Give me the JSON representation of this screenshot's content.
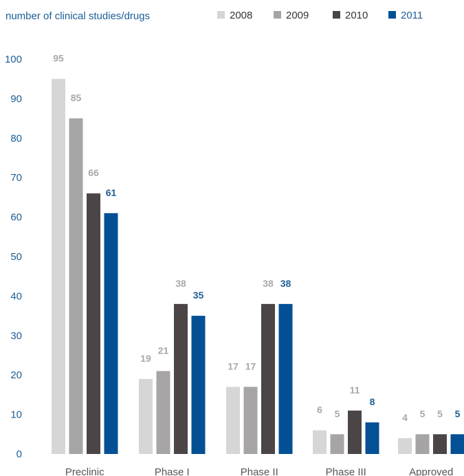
{
  "colors": {
    "axis_text": "#1b5e97",
    "category_text": "#555555",
    "label_muted": "#a8a8a8",
    "series": [
      "#d6d6d6",
      "#a6a4a4",
      "#4b4546",
      "#035095"
    ]
  },
  "chart_data": {
    "type": "bar",
    "ylabel": "number of clinical studies/drugs",
    "categories": [
      "Preclinic",
      "Phase I",
      "Phase II",
      "Phase III",
      "Approved"
    ],
    "series": [
      {
        "name": "2008",
        "values": [
          95,
          19,
          17,
          6,
          4
        ]
      },
      {
        "name": "2009",
        "values": [
          85,
          21,
          17,
          5,
          5
        ]
      },
      {
        "name": "2010",
        "values": [
          66,
          38,
          38,
          11,
          5
        ]
      },
      {
        "name": "2011",
        "values": [
          61,
          35,
          38,
          8,
          5
        ]
      }
    ],
    "ylim": [
      0,
      100
    ],
    "yticks": [
      0,
      10,
      20,
      30,
      40,
      50,
      60,
      70,
      80,
      90,
      100
    ],
    "grid": false,
    "legend": "top-right",
    "data_labels": true
  }
}
